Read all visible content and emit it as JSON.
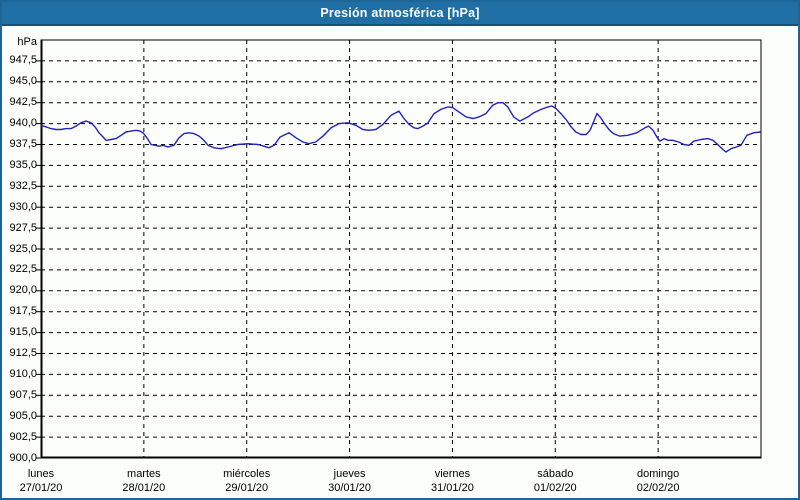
{
  "window": {
    "title": "Presión atmosférica [hPa]"
  },
  "colors": {
    "titlebar_bg": "#1f6fa4",
    "titlebar_text": "#ffffff",
    "window_border": "#1d6595",
    "background": "#fcfefc",
    "axis": "#000000",
    "grid": "#000000",
    "series": "#2222c2"
  },
  "chart_data": {
    "type": "line",
    "title": "Presión atmosférica [hPa]",
    "grid": "dashed",
    "legend": "none",
    "y_axis": {
      "unit_label": "hPa",
      "min": 900,
      "max": 950,
      "tick_step": 2.5,
      "tick_labels": [
        "947,5",
        "945,0",
        "942,5",
        "940,0",
        "937,5",
        "935,0",
        "932,5",
        "930,0",
        "927,5",
        "925,0",
        "922,5",
        "920,0",
        "917,5",
        "915,0",
        "912,5",
        "910,0",
        "907,5",
        "905,0",
        "902,5",
        "900,0"
      ]
    },
    "x_axis": {
      "unit": "days",
      "days": [
        {
          "name": "lunes",
          "date": "27/01/20"
        },
        {
          "name": "martes",
          "date": "28/01/20"
        },
        {
          "name": "miércoles",
          "date": "29/01/20"
        },
        {
          "name": "jueves",
          "date": "30/01/20"
        },
        {
          "name": "viernes",
          "date": "31/01/20"
        },
        {
          "name": "sábado",
          "date": "01/02/20"
        },
        {
          "name": "domingo",
          "date": "02/02/20"
        }
      ],
      "total_hours": 168
    },
    "series": [
      {
        "name": "Presión atmosférica",
        "color": "#2222c2",
        "x_unit": "hours_from_start",
        "points": [
          [
            0,
            939.8
          ],
          [
            1.2,
            939.6
          ],
          [
            2.3,
            939.4
          ],
          [
            3.5,
            939.3
          ],
          [
            4.7,
            939.3
          ],
          [
            5.8,
            939.4
          ],
          [
            7,
            939.4
          ],
          [
            8.2,
            939.7
          ],
          [
            9.3,
            940.1
          ],
          [
            10.5,
            940.3
          ],
          [
            11.7,
            940.1
          ],
          [
            12.6,
            939.6
          ],
          [
            13.5,
            938.9
          ],
          [
            14.5,
            938.4
          ],
          [
            15.2,
            938.0
          ],
          [
            16.3,
            938.1
          ],
          [
            17.5,
            938.2
          ],
          [
            18.7,
            938.6
          ],
          [
            19.8,
            939.0
          ],
          [
            21,
            939.1
          ],
          [
            22.2,
            939.2
          ],
          [
            23.1,
            939.1
          ],
          [
            23.8,
            938.9
          ],
          [
            24.7,
            938.3
          ],
          [
            25.7,
            937.5
          ],
          [
            26.6,
            937.4
          ],
          [
            27.5,
            937.3
          ],
          [
            28.5,
            937.4
          ],
          [
            29.6,
            937.2
          ],
          [
            31,
            937.4
          ],
          [
            32.2,
            938.3
          ],
          [
            33.4,
            938.8
          ],
          [
            34.5,
            938.9
          ],
          [
            35.7,
            938.8
          ],
          [
            36.9,
            938.5
          ],
          [
            37.8,
            938.1
          ],
          [
            39,
            937.4
          ],
          [
            40.4,
            937.1
          ],
          [
            42,
            937.0
          ],
          [
            43.6,
            937.2
          ],
          [
            45.9,
            937.5
          ],
          [
            48.3,
            937.6
          ],
          [
            50.6,
            937.5
          ],
          [
            52,
            937.3
          ],
          [
            53.2,
            937.1
          ],
          [
            54.4,
            937.4
          ],
          [
            55.8,
            938.4
          ],
          [
            57.9,
            938.9
          ],
          [
            59.5,
            938.3
          ],
          [
            61.1,
            937.8
          ],
          [
            62.5,
            937.6
          ],
          [
            64.1,
            937.8
          ],
          [
            65.8,
            938.5
          ],
          [
            67.7,
            939.5
          ],
          [
            69.5,
            940.0
          ],
          [
            71.6,
            940.1
          ],
          [
            73.5,
            939.8
          ],
          [
            75.1,
            939.3
          ],
          [
            76.5,
            939.2
          ],
          [
            78.1,
            939.3
          ],
          [
            79.8,
            939.9
          ],
          [
            81.7,
            941.0
          ],
          [
            83.5,
            941.5
          ],
          [
            84.7,
            940.6
          ],
          [
            85.9,
            939.9
          ],
          [
            87,
            939.5
          ],
          [
            87.9,
            939.4
          ],
          [
            89.1,
            939.7
          ],
          [
            90.3,
            940.1
          ],
          [
            91.7,
            941.2
          ],
          [
            93.3,
            941.7
          ],
          [
            95,
            942.0
          ],
          [
            96.1,
            941.9
          ],
          [
            97.5,
            941.4
          ],
          [
            99.2,
            940.8
          ],
          [
            100.8,
            940.6
          ],
          [
            102.2,
            940.8
          ],
          [
            103.8,
            941.2
          ],
          [
            105.4,
            942.2
          ],
          [
            106.6,
            942.5
          ],
          [
            107.8,
            942.5
          ],
          [
            108.9,
            942.0
          ],
          [
            110.3,
            940.8
          ],
          [
            111.7,
            940.3
          ],
          [
            113.6,
            940.8
          ],
          [
            115,
            941.3
          ],
          [
            116.7,
            941.7
          ],
          [
            118.3,
            942.0
          ],
          [
            119.2,
            942.1
          ],
          [
            120.2,
            941.8
          ],
          [
            121.3,
            941.2
          ],
          [
            122.5,
            940.5
          ],
          [
            123.7,
            939.6
          ],
          [
            124.8,
            939.0
          ],
          [
            126,
            938.7
          ],
          [
            127.2,
            938.7
          ],
          [
            128.1,
            939.2
          ],
          [
            129,
            940.3
          ],
          [
            129.7,
            941.2
          ],
          [
            130.6,
            940.7
          ],
          [
            131.6,
            939.9
          ],
          [
            132.7,
            939.2
          ],
          [
            133.6,
            938.8
          ],
          [
            135,
            938.5
          ],
          [
            136.9,
            938.6
          ],
          [
            139,
            938.9
          ],
          [
            140.9,
            939.5
          ],
          [
            141.8,
            939.7
          ],
          [
            142.8,
            939.2
          ],
          [
            143.7,
            938.4
          ],
          [
            144.4,
            937.9
          ],
          [
            145.4,
            938.2
          ],
          [
            146.3,
            938.0
          ],
          [
            147.4,
            938.0
          ],
          [
            148.8,
            937.8
          ],
          [
            150,
            937.5
          ],
          [
            151.2,
            937.4
          ],
          [
            152.3,
            937.9
          ],
          [
            154,
            938.1
          ],
          [
            155.6,
            938.2
          ],
          [
            156.8,
            938.0
          ],
          [
            157.9,
            937.5
          ],
          [
            159.1,
            936.9
          ],
          [
            159.8,
            936.6
          ],
          [
            161,
            937.0
          ],
          [
            162.2,
            937.2
          ],
          [
            163.3,
            937.4
          ],
          [
            164.7,
            938.6
          ],
          [
            166.3,
            938.9
          ],
          [
            167.8,
            939.0
          ]
        ]
      }
    ]
  }
}
